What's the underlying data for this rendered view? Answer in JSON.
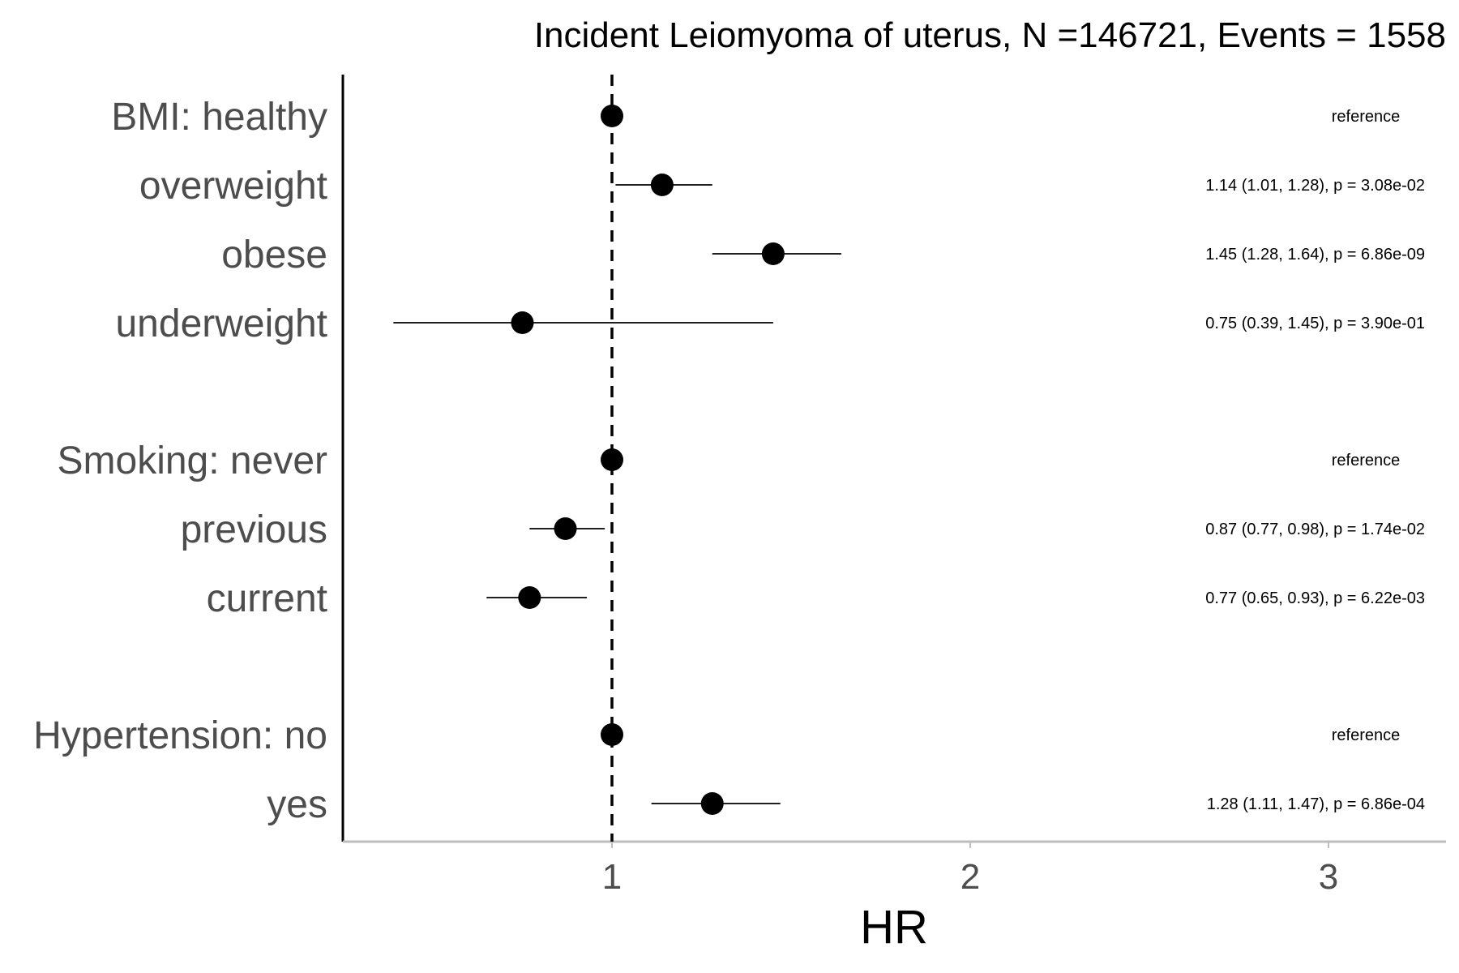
{
  "chart_data": {
    "type": "forest",
    "title": "Incident Leiomyoma of uterus, N =146721, Events = 1558",
    "xlabel": "HR",
    "xlim": [
      0.25,
      3.33
    ],
    "xticks": [
      1,
      2,
      3
    ],
    "reference_line": 1,
    "rows": [
      {
        "label": "BMI: healthy",
        "hr": 1.0,
        "lo": null,
        "hi": null,
        "annotation": "reference"
      },
      {
        "label": "overweight",
        "hr": 1.14,
        "lo": 1.01,
        "hi": 1.28,
        "annotation": "1.14 (1.01, 1.28), p = 3.08e-02"
      },
      {
        "label": "obese",
        "hr": 1.45,
        "lo": 1.28,
        "hi": 1.64,
        "annotation": "1.45 (1.28, 1.64), p = 6.86e-09"
      },
      {
        "label": "underweight",
        "hr": 0.75,
        "lo": 0.39,
        "hi": 1.45,
        "annotation": "0.75 (0.39, 1.45), p = 3.90e-01"
      },
      {
        "label": "Smoking: never",
        "hr": 1.0,
        "lo": null,
        "hi": null,
        "annotation": "reference"
      },
      {
        "label": "previous",
        "hr": 0.87,
        "lo": 0.77,
        "hi": 0.98,
        "annotation": "0.87 (0.77, 0.98), p = 1.74e-02"
      },
      {
        "label": "current",
        "hr": 0.77,
        "lo": 0.65,
        "hi": 0.93,
        "annotation": "0.77 (0.65, 0.93), p = 6.22e-03"
      },
      {
        "label": "Hypertension: no",
        "hr": 1.0,
        "lo": null,
        "hi": null,
        "annotation": "reference"
      },
      {
        "label": "yes",
        "hr": 1.28,
        "lo": 1.11,
        "hi": 1.47,
        "annotation": "1.28 (1.11, 1.47), p = 6.86e-04"
      }
    ]
  }
}
